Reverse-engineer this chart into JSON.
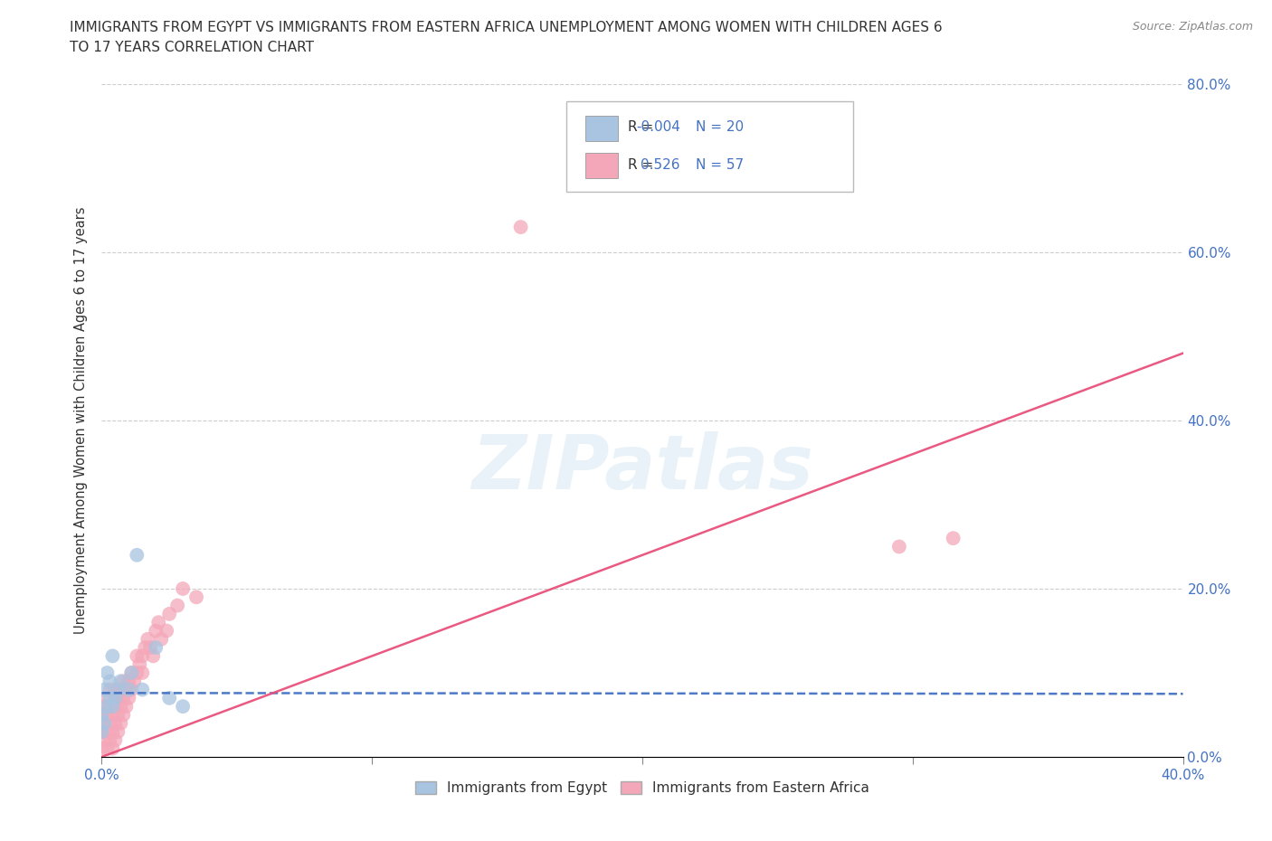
{
  "title_line1": "IMMIGRANTS FROM EGYPT VS IMMIGRANTS FROM EASTERN AFRICA UNEMPLOYMENT AMONG WOMEN WITH CHILDREN AGES 6",
  "title_line2": "TO 17 YEARS CORRELATION CHART",
  "source": "Source: ZipAtlas.com",
  "ylabel": "Unemployment Among Women with Children Ages 6 to 17 years",
  "xlim": [
    0.0,
    0.4
  ],
  "ylim": [
    0.0,
    0.8
  ],
  "xticks": [
    0.0,
    0.1,
    0.2,
    0.3,
    0.4
  ],
  "yticks": [
    0.0,
    0.2,
    0.4,
    0.6,
    0.8
  ],
  "xticklabels": [
    "0.0%",
    "",
    "",
    "",
    "40.0%"
  ],
  "yticklabels_right": [
    "0.0%",
    "20.0%",
    "40.0%",
    "60.0%",
    "80.0%"
  ],
  "egypt_color": "#a8c4e0",
  "eastern_africa_color": "#f4a7b9",
  "egypt_line_color": "#4472c4",
  "eastern_africa_line_color": "#e8507a",
  "egypt_R": -0.004,
  "egypt_N": 20,
  "eastern_africa_R": 0.526,
  "eastern_africa_N": 57,
  "watermark": "ZIPatlas",
  "legend_label_egypt": "Immigrants from Egypt",
  "legend_label_eastern_africa": "Immigrants from Eastern Africa",
  "egypt_line_y0": 0.076,
  "egypt_line_y1": 0.075,
  "ea_line_y0": 0.0,
  "ea_line_y1": 0.48,
  "egypt_x": [
    0.0,
    0.0,
    0.001,
    0.001,
    0.002,
    0.002,
    0.003,
    0.003,
    0.004,
    0.004,
    0.005,
    0.006,
    0.007,
    0.01,
    0.011,
    0.013,
    0.015,
    0.02,
    0.025,
    0.03
  ],
  "egypt_y": [
    0.03,
    0.05,
    0.04,
    0.08,
    0.06,
    0.1,
    0.07,
    0.09,
    0.06,
    0.12,
    0.07,
    0.08,
    0.09,
    0.08,
    0.1,
    0.24,
    0.08,
    0.13,
    0.07,
    0.06
  ],
  "ea_x": [
    0.0,
    0.0,
    0.0,
    0.001,
    0.001,
    0.001,
    0.002,
    0.002,
    0.002,
    0.002,
    0.003,
    0.003,
    0.003,
    0.003,
    0.004,
    0.004,
    0.004,
    0.005,
    0.005,
    0.005,
    0.005,
    0.006,
    0.006,
    0.006,
    0.007,
    0.007,
    0.007,
    0.008,
    0.008,
    0.008,
    0.009,
    0.009,
    0.01,
    0.01,
    0.011,
    0.011,
    0.012,
    0.013,
    0.013,
    0.014,
    0.015,
    0.015,
    0.016,
    0.017,
    0.018,
    0.019,
    0.02,
    0.021,
    0.022,
    0.024,
    0.025,
    0.028,
    0.03,
    0.035,
    0.155,
    0.295,
    0.315
  ],
  "ea_y": [
    0.01,
    0.03,
    0.05,
    0.02,
    0.04,
    0.06,
    0.01,
    0.03,
    0.05,
    0.07,
    0.02,
    0.04,
    0.06,
    0.08,
    0.01,
    0.03,
    0.05,
    0.02,
    0.04,
    0.06,
    0.08,
    0.03,
    0.05,
    0.07,
    0.04,
    0.06,
    0.08,
    0.05,
    0.07,
    0.09,
    0.06,
    0.08,
    0.07,
    0.09,
    0.08,
    0.1,
    0.09,
    0.1,
    0.12,
    0.11,
    0.1,
    0.12,
    0.13,
    0.14,
    0.13,
    0.12,
    0.15,
    0.16,
    0.14,
    0.15,
    0.17,
    0.18,
    0.2,
    0.19,
    0.63,
    0.25,
    0.26
  ]
}
